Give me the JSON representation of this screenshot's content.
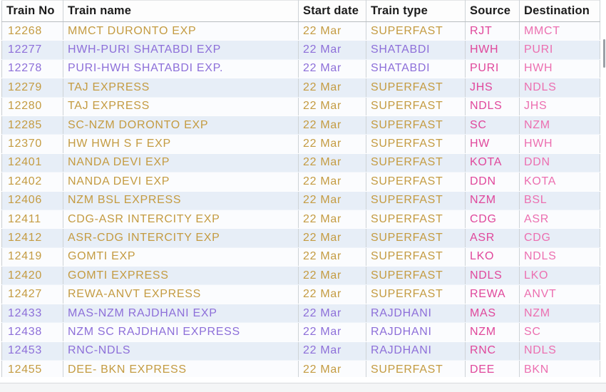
{
  "colors": {
    "gold": "#c49b41",
    "purple": "#8d6fd9",
    "source_pink": "#e0479b",
    "destination_pink": "#ec6fb0",
    "row_stripe_blue": "#e7eef7",
    "row_white": "#fbfcfe",
    "header_text": "#1b1b1b"
  },
  "table": {
    "columns": [
      {
        "key": "no",
        "label": "Train No"
      },
      {
        "key": "name",
        "label": "Train name"
      },
      {
        "key": "date",
        "label": "Start date"
      },
      {
        "key": "type",
        "label": "Train type"
      },
      {
        "key": "source",
        "label": "Source"
      },
      {
        "key": "dest",
        "label": "Destination"
      }
    ],
    "rows": [
      {
        "no": "12268",
        "name": "MMCT DURONTO EXP",
        "date": "22 Mar",
        "type": "SUPERFAST",
        "source": "RJT",
        "dest": "MMCT",
        "theme": "gold"
      },
      {
        "no": "12277",
        "name": "HWH-PURI SHATABDI EXP",
        "date": "22 Mar",
        "type": "SHATABDI",
        "source": "HWH",
        "dest": "PURI",
        "theme": "purple"
      },
      {
        "no": "12278",
        "name": "PURI-HWH SHATABDI EXP.",
        "date": "22 Mar",
        "type": "SHATABDI",
        "source": "PURI",
        "dest": "HWH",
        "theme": "purple"
      },
      {
        "no": "12279",
        "name": "TAJ EXPRESS",
        "date": "22 Mar",
        "type": "SUPERFAST",
        "source": "JHS",
        "dest": "NDLS",
        "theme": "gold"
      },
      {
        "no": "12280",
        "name": "TAJ EXPRESS",
        "date": "22 Mar",
        "type": "SUPERFAST",
        "source": "NDLS",
        "dest": "JHS",
        "theme": "gold"
      },
      {
        "no": "12285",
        "name": "SC-NZM DORONTO EXP",
        "date": "22 Mar",
        "type": "SUPERFAST",
        "source": "SC",
        "dest": "NZM",
        "theme": "gold"
      },
      {
        "no": "12370",
        "name": "HW HWH S F EXP",
        "date": "22 Mar",
        "type": "SUPERFAST",
        "source": "HW",
        "dest": "HWH",
        "theme": "gold"
      },
      {
        "no": "12401",
        "name": "NANDA DEVI EXP",
        "date": "22 Mar",
        "type": "SUPERFAST",
        "source": "KOTA",
        "dest": "DDN",
        "theme": "gold"
      },
      {
        "no": "12402",
        "name": "NANDA DEVI EXP",
        "date": "22 Mar",
        "type": "SUPERFAST",
        "source": "DDN",
        "dest": "KOTA",
        "theme": "gold"
      },
      {
        "no": "12406",
        "name": "NZM BSL EXPRESS",
        "date": "22 Mar",
        "type": "SUPERFAST",
        "source": "NZM",
        "dest": "BSL",
        "theme": "gold"
      },
      {
        "no": "12411",
        "name": "CDG-ASR INTERCITY EXP",
        "date": "22 Mar",
        "type": "SUPERFAST",
        "source": "CDG",
        "dest": "ASR",
        "theme": "gold"
      },
      {
        "no": "12412",
        "name": "ASR-CDG INTERCITY EXP",
        "date": "22 Mar",
        "type": "SUPERFAST",
        "source": "ASR",
        "dest": "CDG",
        "theme": "gold"
      },
      {
        "no": "12419",
        "name": "GOMTI EXP",
        "date": "22 Mar",
        "type": "SUPERFAST",
        "source": "LKO",
        "dest": "NDLS",
        "theme": "gold"
      },
      {
        "no": "12420",
        "name": "GOMTI EXPRESS",
        "date": "22 Mar",
        "type": "SUPERFAST",
        "source": "NDLS",
        "dest": "LKO",
        "theme": "gold"
      },
      {
        "no": "12427",
        "name": "REWA-ANVT EXPRESS",
        "date": "22 Mar",
        "type": "SUPERFAST",
        "source": "REWA",
        "dest": "ANVT",
        "theme": "gold"
      },
      {
        "no": "12433",
        "name": "MAS-NZM RAJDHANI EXP",
        "date": "22 Mar",
        "type": "RAJDHANI",
        "source": "MAS",
        "dest": "NZM",
        "theme": "purple"
      },
      {
        "no": "12438",
        "name": "NZM SC RAJDHANI EXPRESS",
        "date": "22 Mar",
        "type": "RAJDHANI",
        "source": "NZM",
        "dest": "SC",
        "theme": "purple"
      },
      {
        "no": "12453",
        "name": "RNC-NDLS",
        "date": "22 Mar",
        "type": "RAJDHANI",
        "source": "RNC",
        "dest": "NDLS",
        "theme": "purple"
      },
      {
        "no": "12455",
        "name": "DEE- BKN EXPRESS",
        "date": "22 Mar",
        "type": "SUPERFAST",
        "source": "DEE",
        "dest": "BKN",
        "theme": "gold"
      }
    ]
  }
}
